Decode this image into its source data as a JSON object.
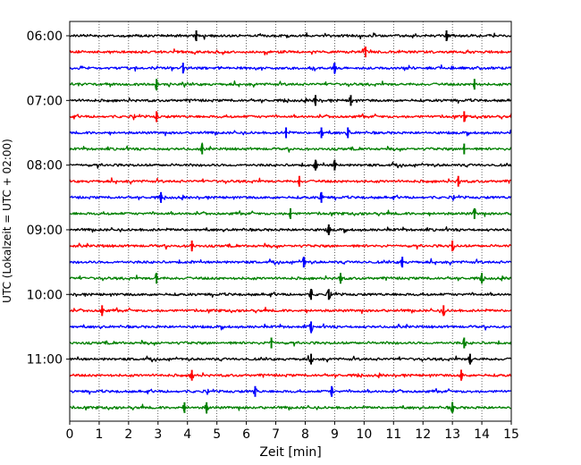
{
  "chart_data": {
    "type": "line",
    "title": "",
    "xlabel": "Zeit  [min]",
    "ylabel": "UTC (Lokalzeit = UTC + 02:00)",
    "xlim": [
      0,
      15
    ],
    "x_ticks": [
      "0",
      "1",
      "2",
      "3",
      "4",
      "5",
      "6",
      "7",
      "8",
      "9",
      "10",
      "11",
      "12",
      "13",
      "14",
      "15"
    ],
    "y_tick_labels": [
      "06:00",
      "07:00",
      "08:00",
      "09:00",
      "10:00",
      "11:00"
    ],
    "grid": "vertical dotted",
    "trace_interval_min": 15,
    "trace_colors": [
      "#000000",
      "#ff0000",
      "#0000ff",
      "#008000"
    ],
    "traces": [
      {
        "start": "06:00",
        "color": "#000000",
        "events_min": [
          4.3,
          12.8
        ]
      },
      {
        "start": "06:15",
        "color": "#ff0000",
        "events_min": [
          10.05
        ]
      },
      {
        "start": "06:30",
        "color": "#0000ff",
        "events_min": [
          3.85,
          9.0
        ]
      },
      {
        "start": "06:45",
        "color": "#008000",
        "events_min": [
          2.95,
          13.75
        ]
      },
      {
        "start": "07:00",
        "color": "#000000",
        "events_min": [
          8.35,
          9.55
        ]
      },
      {
        "start": "07:15",
        "color": "#ff0000",
        "events_min": [
          2.95,
          13.4
        ]
      },
      {
        "start": "07:30",
        "color": "#0000ff",
        "events_min": [
          7.35,
          8.55,
          9.45
        ]
      },
      {
        "start": "07:45",
        "color": "#008000",
        "events_min": [
          4.5,
          13.4
        ]
      },
      {
        "start": "08:00",
        "color": "#000000",
        "events_min": [
          8.35,
          9.0
        ]
      },
      {
        "start": "08:15",
        "color": "#ff0000",
        "events_min": [
          7.8,
          13.2
        ]
      },
      {
        "start": "08:30",
        "color": "#0000ff",
        "events_min": [
          3.1,
          8.55
        ]
      },
      {
        "start": "08:45",
        "color": "#008000",
        "events_min": [
          7.5,
          13.75
        ]
      },
      {
        "start": "09:00",
        "color": "#000000",
        "events_min": [
          8.8
        ]
      },
      {
        "start": "09:15",
        "color": "#ff0000",
        "events_min": [
          4.15,
          13.0
        ]
      },
      {
        "start": "09:30",
        "color": "#0000ff",
        "events_min": [
          7.95,
          11.3
        ]
      },
      {
        "start": "09:45",
        "color": "#008000",
        "events_min": [
          2.95,
          9.2,
          14.0
        ]
      },
      {
        "start": "10:00",
        "color": "#000000",
        "events_min": [
          8.2,
          8.8
        ]
      },
      {
        "start": "10:15",
        "color": "#ff0000",
        "events_min": [
          1.1,
          12.7
        ]
      },
      {
        "start": "10:30",
        "color": "#0000ff",
        "events_min": [
          8.2
        ]
      },
      {
        "start": "10:45",
        "color": "#008000",
        "events_min": [
          6.85,
          13.4
        ]
      },
      {
        "start": "11:00",
        "color": "#000000",
        "events_min": [
          8.2,
          13.6
        ]
      },
      {
        "start": "11:15",
        "color": "#ff0000",
        "events_min": [
          4.15,
          13.3
        ]
      },
      {
        "start": "11:30",
        "color": "#0000ff",
        "events_min": [
          6.3,
          8.9
        ]
      },
      {
        "start": "11:45",
        "color": "#008000",
        "events_min": [
          3.9,
          4.65,
          13.0
        ]
      }
    ]
  }
}
